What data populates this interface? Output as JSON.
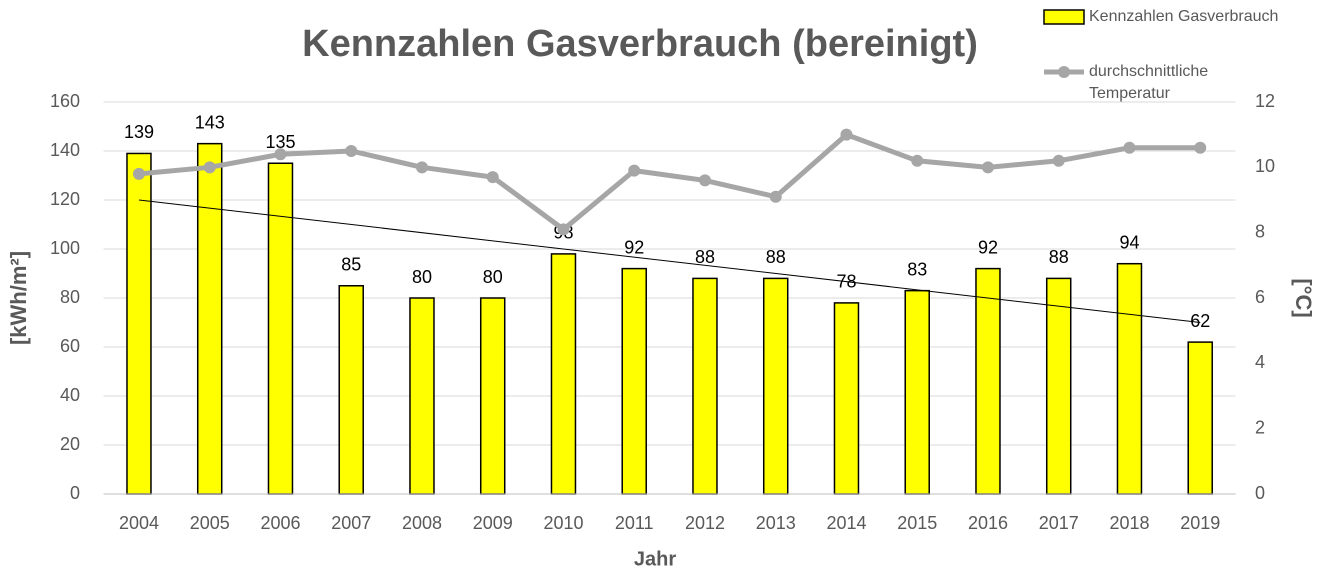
{
  "chart_data": {
    "type": "bar_line",
    "title": "Kennzahlen Gasverbrauch (bereinigt)",
    "x_label": "Jahr",
    "y_label": "[kWh/m²]",
    "y2_label": "[°C]",
    "categories": [
      "2004",
      "2005",
      "2006",
      "2007",
      "2008",
      "2009",
      "2010",
      "2011",
      "2012",
      "2013",
      "2014",
      "2015",
      "2016",
      "2017",
      "2018",
      "2019"
    ],
    "series": [
      {
        "name": "Kennzahlen Gasverbrauch",
        "color": "#ffff00",
        "type": "bar",
        "values": [
          139,
          143,
          135,
          85,
          80,
          80,
          98,
          92,
          88,
          88,
          78,
          83,
          92,
          88,
          94,
          62
        ]
      },
      {
        "name": "durchschnittliche Temperatur",
        "color": "#a6a6a6",
        "type": "line",
        "axis": "y2",
        "values": [
          9.8,
          10.0,
          10.4,
          10.5,
          10.0,
          9.7,
          8.1,
          9.9,
          9.6,
          9.1,
          11.0,
          10.2,
          10.0,
          10.2,
          10.6,
          10.6
        ]
      }
    ],
    "trendline": [
      120,
      70
    ],
    "ylim": [
      0,
      160
    ],
    "yticks": [
      0,
      20,
      40,
      60,
      80,
      100,
      120,
      140,
      160
    ],
    "y2lim": [
      0,
      12
    ],
    "y2ticks": [
      0,
      2,
      4,
      6,
      8,
      10,
      12
    ],
    "grid": true,
    "legend": "top-right"
  }
}
